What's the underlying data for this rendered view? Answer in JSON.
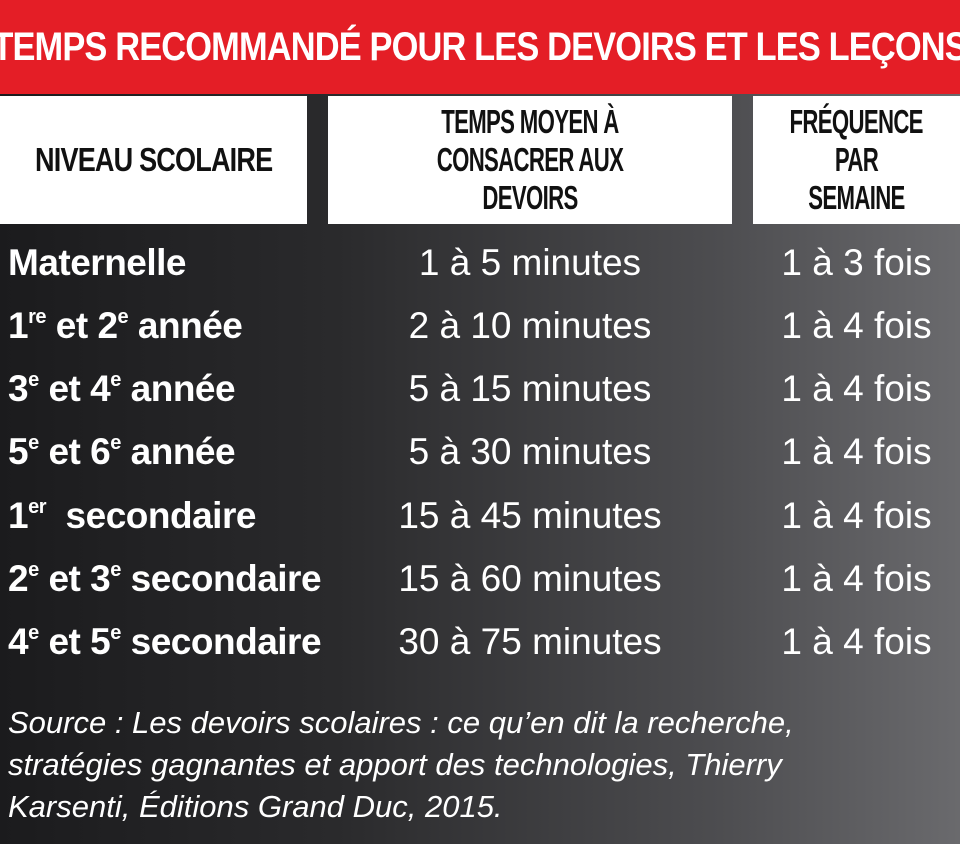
{
  "title": "TEMPS RECOMMANDÉ POUR LES DEVOIRS ET LES LEÇONS",
  "headers": {
    "col1": "NIVEAU SCOLAIRE",
    "col2_line1": "TEMPS MOYEN À",
    "col2_line2": "CONSACRER AUX DEVOIRS",
    "col3_line1": "FRÉQUENCE",
    "col3_line2": "PAR SEMAINE"
  },
  "rows": [
    {
      "level": {
        "a": "Maternelle"
      },
      "time": "1 à 5 minutes",
      "freq": "1 à 3 fois"
    },
    {
      "level": {
        "n1": "1",
        "s1": "re",
        "mid": " et 2",
        "s2": "e",
        "end": " année"
      },
      "time": "2 à 10 minutes",
      "freq": "1 à 4 fois"
    },
    {
      "level": {
        "n1": "3",
        "s1": "e",
        "mid": " et 4",
        "s2": "e",
        "end": " année"
      },
      "time": "5 à 15 minutes",
      "freq": "1 à 4 fois"
    },
    {
      "level": {
        "n1": "5",
        "s1": "e",
        "mid": " et 6",
        "s2": "e",
        "end": " année"
      },
      "time": "5 à 30 minutes",
      "freq": "1 à 4 fois"
    },
    {
      "level": {
        "n1": "1",
        "s1": "er",
        "end": "  secondaire"
      },
      "time": "15 à 45 minutes",
      "freq": "1 à 4 fois"
    },
    {
      "level": {
        "n1": "2",
        "s1": "e",
        "mid": " et 3",
        "s2": "e",
        "end": " secondaire"
      },
      "time": "15 à 60 minutes",
      "freq": "1 à 4 fois"
    },
    {
      "level": {
        "n1": "4",
        "s1": "e",
        "mid": " et 5",
        "s2": "e",
        "end": " secondaire"
      },
      "time": "30 à 75 minutes",
      "freq": "1 à 4 fois"
    }
  ],
  "source": {
    "line1": "Source : Les devoirs scolaires : ce qu’en dit la recherche,",
    "line2": "stratégies gagnantes et apport des technologies, Thierry",
    "line3": "Karsenti, Éditions Grand Duc, 2015."
  }
}
